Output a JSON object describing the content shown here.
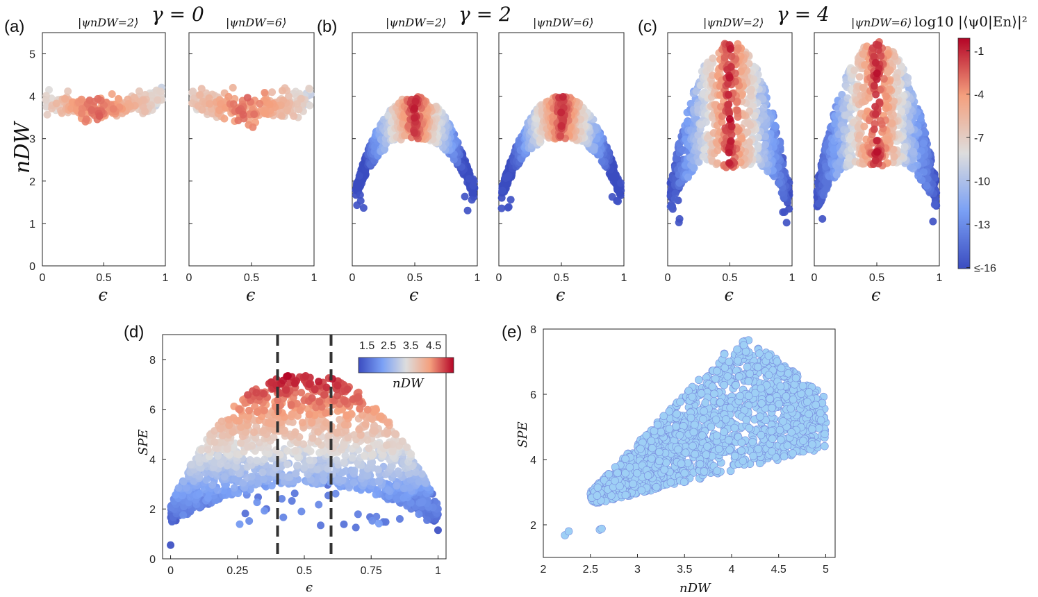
{
  "figure": {
    "colors": {
      "blue": "#3b4cc0",
      "white": "#dddddd",
      "red": "#b40426",
      "scatter_e": "#9ecff5",
      "scatter_e_edge": "#7a8fe0"
    },
    "panels_top": [
      {
        "label": "(a)",
        "gamma": "γ = 0",
        "subtitles": [
          "|ψnDW=2⟩",
          "|ψnDW=6⟩"
        ]
      },
      {
        "label": "(b)",
        "gamma": "γ = 2",
        "subtitles": [
          "|ψnDW=2⟩",
          "|ψnDW=6⟩"
        ]
      },
      {
        "label": "(c)",
        "gamma": "γ = 4",
        "subtitles": [
          "|ψnDW=2⟩",
          "|ψnDW=6⟩"
        ]
      }
    ],
    "top_ylabel": "nDW",
    "top_xlabel": "ϵ",
    "colorbar": {
      "title": "log10 |⟨ψ0|En⟩|²",
      "ticks": [
        "-1",
        "-4",
        "-7",
        "-10",
        "-13",
        "≤-16"
      ]
    },
    "panel_d": {
      "label": "(d)",
      "xlabel": "ϵ",
      "ylabel": "SPE",
      "cb_label": "nDW",
      "cb_ticks": [
        "1.5",
        "2.5",
        "3.5",
        "4.5"
      ]
    },
    "panel_e": {
      "label": "(e)",
      "xlabel": "nDW",
      "ylabel": "SPE"
    }
  },
  "chart_data": [
    {
      "type": "scatter",
      "panel": "(a) left",
      "title": "|ψnDW=2⟩",
      "gamma": 0,
      "xlabel": "ϵ",
      "ylabel": "nDW",
      "xlim": [
        0,
        1
      ],
      "ylim": [
        0,
        5.5
      ],
      "xticks": [
        0,
        0.5,
        1
      ],
      "yticks": [
        0,
        1,
        2,
        3,
        4,
        5
      ],
      "shape": {
        "center": 3.7,
        "edge": 4.05,
        "spread": 0.12,
        "hi_color": 4.5
      }
    },
    {
      "type": "scatter",
      "panel": "(a) right",
      "title": "|ψnDW=6⟩",
      "gamma": 0,
      "xlabel": "ϵ",
      "xlim": [
        0,
        1
      ],
      "ylim": [
        0,
        5.5
      ],
      "xticks": [
        0,
        0.5,
        1
      ],
      "yticks": [
        0,
        1,
        2,
        3,
        4,
        5
      ],
      "shape": {
        "center": 3.7,
        "edge": 4.05,
        "spread": 0.14,
        "hi_color": 4.3
      }
    },
    {
      "type": "scatter",
      "panel": "(b) left",
      "title": "|ψnDW=2⟩",
      "gamma": 2,
      "xlabel": "ϵ",
      "xlim": [
        0,
        1
      ],
      "ylim": [
        0,
        5.5
      ],
      "xticks": [
        0,
        0.5,
        1
      ],
      "yticks": [
        0,
        1,
        2,
        3,
        4,
        5
      ],
      "shape": {
        "top": 4.0,
        "edge": 1.4,
        "hot_low": 3.1,
        "hot_high": 4.0
      }
    },
    {
      "type": "scatter",
      "panel": "(b) right",
      "title": "|ψnDW=6⟩",
      "gamma": 2,
      "xlabel": "ϵ",
      "xlim": [
        0,
        1
      ],
      "ylim": [
        0,
        5.5
      ],
      "xticks": [
        0,
        0.5,
        1
      ],
      "yticks": [
        0,
        1,
        2,
        3,
        4,
        5
      ],
      "shape": {
        "top": 4.0,
        "edge": 1.4,
        "hot_low": 3.4,
        "hot_high": 4.0
      }
    },
    {
      "type": "scatter",
      "panel": "(c) left",
      "title": "|ψnDW=2⟩",
      "gamma": 4,
      "xlabel": "ϵ",
      "xlim": [
        0,
        1
      ],
      "ylim": [
        0,
        5.5
      ],
      "xticks": [
        0,
        0.5,
        1
      ],
      "yticks": [
        0,
        1,
        2,
        3,
        4,
        5
      ],
      "shape": {
        "top": 5.3,
        "edge": 1.0,
        "hot_low": 2.2,
        "hot_high": 5.0
      }
    },
    {
      "type": "scatter",
      "panel": "(c) right",
      "title": "|ψnDW=6⟩",
      "gamma": 4,
      "xlabel": "ϵ",
      "xlim": [
        0,
        1
      ],
      "ylim": [
        0,
        5.5
      ],
      "xticks": [
        0,
        0.5,
        1
      ],
      "yticks": [
        0,
        1,
        2,
        3,
        4,
        5
      ],
      "shape": {
        "top": 5.3,
        "edge": 1.0,
        "hot_low": 2.2,
        "hot_high": 5.2
      }
    },
    {
      "type": "scatter",
      "panel": "(d)",
      "xlabel": "ϵ",
      "ylabel": "SPE",
      "xlim": [
        -0.03,
        1.03
      ],
      "ylim": [
        0,
        9
      ],
      "xticks": [
        0,
        0.25,
        0.5,
        0.75,
        1
      ],
      "yticks": [
        0,
        2,
        4,
        6,
        8
      ],
      "vlines": [
        0.4,
        0.6
      ],
      "colorbar_label": "nDW",
      "colorbar_range": [
        1,
        5
      ],
      "colorbar_ticks": [
        1.5,
        2.5,
        3.5,
        4.5
      ]
    },
    {
      "type": "scatter",
      "panel": "(e)",
      "xlabel": "nDW",
      "ylabel": "SPE",
      "xlim": [
        2,
        5.1
      ],
      "ylim": [
        1,
        8
      ],
      "xticks": [
        2,
        2.5,
        3,
        3.5,
        4,
        4.5,
        5
      ],
      "yticks": [
        2,
        4,
        6,
        8
      ]
    }
  ]
}
